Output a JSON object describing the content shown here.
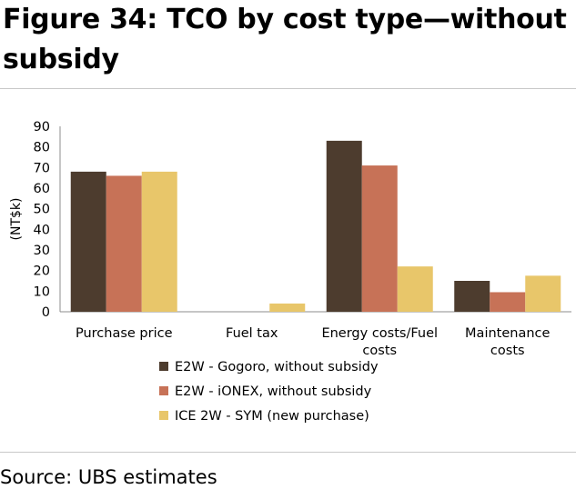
{
  "figure": {
    "title": "Figure 34: TCO by cost type—without subsidy",
    "source": "Source: UBS estimates"
  },
  "chart_data": {
    "type": "bar",
    "title": "Figure 34: TCO by cost type—without subsidy",
    "categories": [
      [
        "Purchase price"
      ],
      [
        "Fuel tax"
      ],
      [
        "Energy costs/Fuel",
        "costs"
      ],
      [
        "Maintenance",
        "costs"
      ]
    ],
    "series": [
      {
        "name": "E2W - Gogoro, without subsidy",
        "color": "#4d3c2e",
        "values": [
          68,
          0,
          83,
          15
        ]
      },
      {
        "name": "E2W - iONEX, without subsidy",
        "color": "#c77257",
        "values": [
          66,
          0,
          71,
          9.5
        ]
      },
      {
        "name": "ICE 2W - SYM (new purchase)",
        "color": "#e8c66a",
        "values": [
          68,
          4,
          22,
          17.5
        ]
      }
    ],
    "xlabel": "",
    "ylabel": "(NT$k)",
    "ylim": [
      0,
      90
    ],
    "yticks": [
      0,
      10,
      20,
      30,
      40,
      50,
      60,
      70,
      80,
      90
    ],
    "grid": false,
    "legend_position": "bottom"
  }
}
